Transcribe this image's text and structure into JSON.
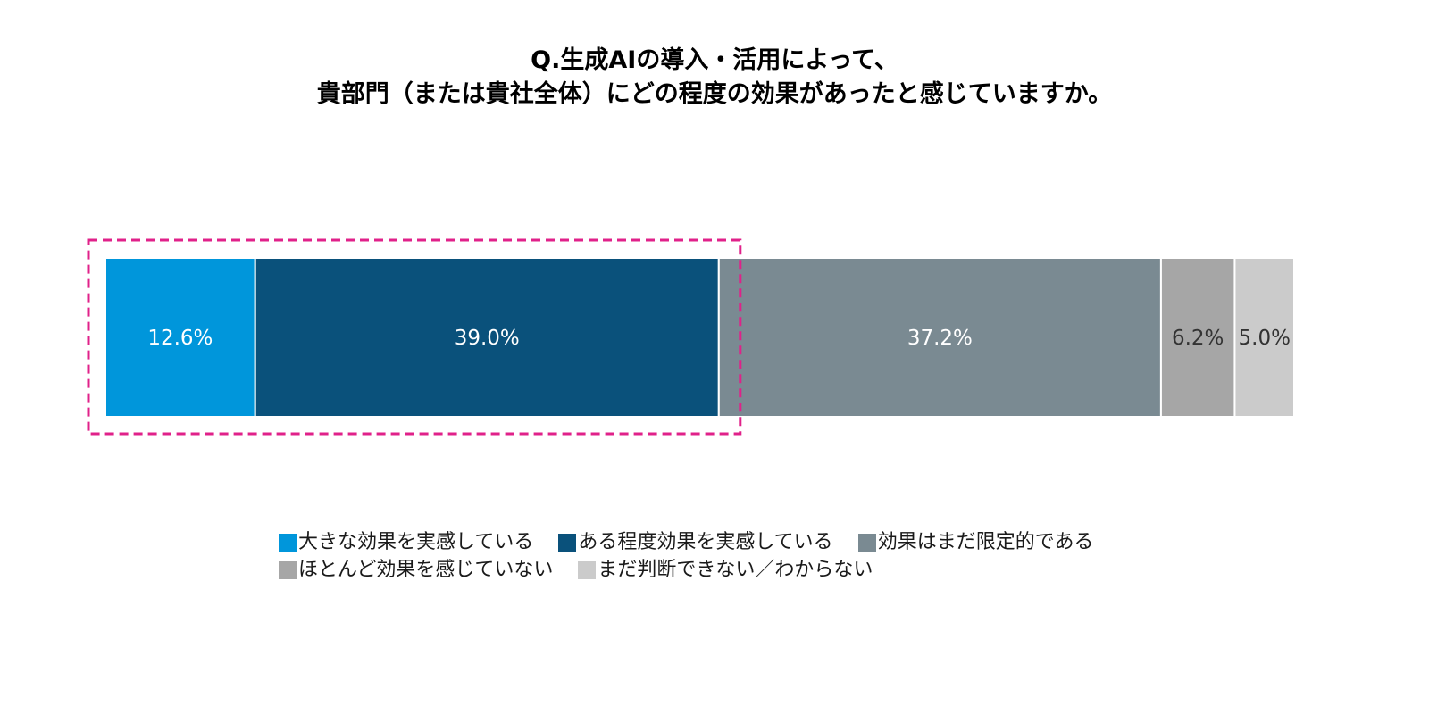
{
  "chart_data": {
    "type": "bar",
    "orientation": "horizontal-stacked-100",
    "title_lines": [
      "Q.生成AIの導入・活用によって、",
      "貴部門（または貴社全体）にどの程度の効果があったと感じていますか。"
    ],
    "xlabel": "",
    "ylabel": "",
    "grid": false,
    "legend_placement": "bottom",
    "series": [
      {
        "name": "大きな効果を実感している",
        "value": 12.6,
        "label": "12.6%",
        "color": "#0096db",
        "label_color": "#ffffff"
      },
      {
        "name": "ある程度効果を実感している",
        "value": 39.0,
        "label": "39.0%",
        "color": "#0a517b",
        "label_color": "#ffffff"
      },
      {
        "name": "効果はまだ限定的である",
        "value": 37.2,
        "label": "37.2%",
        "color": "#7a8a92",
        "label_color": "#ffffff"
      },
      {
        "name": "ほとんど効果を感じていない",
        "value": 6.2,
        "label": "6.2%",
        "color": "#a6a6a6",
        "label_color": "#333333"
      },
      {
        "name": "まだ判断できない／わからない",
        "value": 5.0,
        "label": "5.0%",
        "color": "#cbcbcb",
        "label_color": "#333333"
      }
    ],
    "highlight": {
      "covers_series": [
        0,
        1
      ],
      "color": "#e0218a",
      "style": "dashed"
    }
  }
}
